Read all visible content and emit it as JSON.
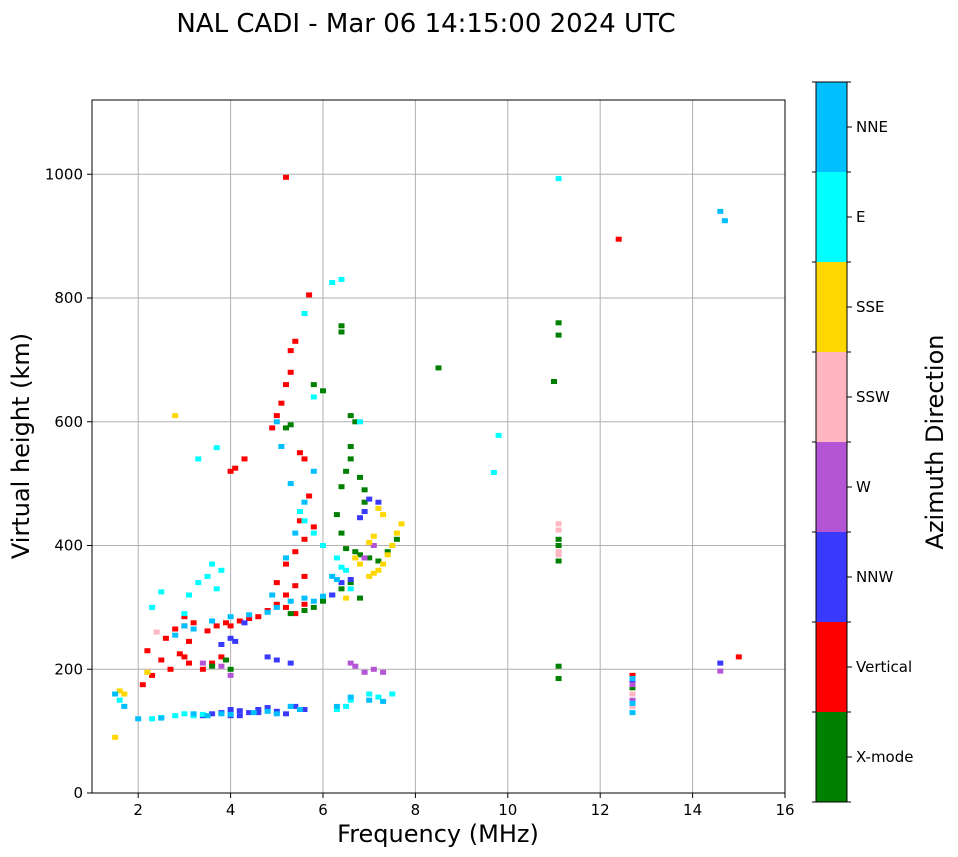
{
  "chart_data": {
    "type": "scatter",
    "title": "NAL CADI - Mar 06 14:15:00 2024 UTC",
    "xlabel": "Frequency (MHz)",
    "ylabel": "Virtual height (km)",
    "xlim": [
      1,
      16
    ],
    "ylim": [
      0,
      1120
    ],
    "xticks": [
      2,
      4,
      6,
      8,
      10,
      12,
      14,
      16
    ],
    "yticks": [
      0,
      200,
      400,
      600,
      800,
      1000
    ],
    "grid": true,
    "colorbar": {
      "label": "Azimuth Direction",
      "categories": [
        {
          "name": "X-mode",
          "color": "#008000"
        },
        {
          "name": "Vertical",
          "color": "#ff0000"
        },
        {
          "name": "NNW",
          "color": "#3a3aff"
        },
        {
          "name": "W",
          "color": "#b455d6"
        },
        {
          "name": "SSW",
          "color": "#ffb6c1"
        },
        {
          "name": "SSE",
          "color": "#ffd700"
        },
        {
          "name": "E",
          "color": "#00ffff"
        },
        {
          "name": "NNE",
          "color": "#00bfff"
        }
      ]
    },
    "series": [
      {
        "name": "Vertical",
        "points": [
          [
            2.1,
            175
          ],
          [
            2.3,
            190
          ],
          [
            2.5,
            215
          ],
          [
            2.6,
            250
          ],
          [
            2.8,
            265
          ],
          [
            3.0,
            270
          ],
          [
            3.0,
            285
          ],
          [
            3.2,
            275
          ],
          [
            3.5,
            262
          ],
          [
            3.7,
            270
          ],
          [
            3.9,
            275
          ],
          [
            4.0,
            270
          ],
          [
            4.2,
            278
          ],
          [
            4.4,
            282
          ],
          [
            4.6,
            285
          ],
          [
            4.8,
            295
          ],
          [
            5.0,
            305
          ],
          [
            5.2,
            320
          ],
          [
            5.4,
            335
          ],
          [
            5.6,
            350
          ],
          [
            3.1,
            210
          ],
          [
            3.4,
            200
          ],
          [
            3.6,
            210
          ],
          [
            2.9,
            225
          ],
          [
            3.1,
            245
          ],
          [
            3.0,
            220
          ],
          [
            3.8,
            220
          ],
          [
            5.0,
            340
          ],
          [
            5.2,
            370
          ],
          [
            5.4,
            390
          ],
          [
            5.6,
            410
          ],
          [
            5.8,
            430
          ],
          [
            5.2,
            300
          ],
          [
            5.4,
            290
          ],
          [
            5.6,
            305
          ],
          [
            4.9,
            590
          ],
          [
            5.0,
            610
          ],
          [
            5.1,
            630
          ],
          [
            5.2,
            660
          ],
          [
            5.3,
            680
          ],
          [
            4.3,
            540
          ],
          [
            4.1,
            525
          ],
          [
            4.0,
            520
          ],
          [
            5.3,
            715
          ],
          [
            5.4,
            730
          ],
          [
            5.7,
            805
          ],
          [
            5.2,
            995
          ],
          [
            12.4,
            895
          ],
          [
            12.7,
            190
          ],
          [
            15.0,
            220
          ],
          [
            5.6,
            540
          ],
          [
            5.5,
            550
          ],
          [
            5.7,
            480
          ],
          [
            5.5,
            440
          ],
          [
            2.7,
            200
          ],
          [
            2.2,
            230
          ]
        ]
      },
      {
        "name": "X-mode",
        "points": [
          [
            3.6,
            205
          ],
          [
            3.9,
            215
          ],
          [
            4.0,
            200
          ],
          [
            5.2,
            590
          ],
          [
            5.3,
            595
          ],
          [
            6.0,
            650
          ],
          [
            5.8,
            660
          ],
          [
            6.4,
            745
          ],
          [
            6.4,
            755
          ],
          [
            6.6,
            540
          ],
          [
            6.5,
            520
          ],
          [
            6.8,
            510
          ],
          [
            6.9,
            490
          ],
          [
            6.9,
            470
          ],
          [
            6.4,
            495
          ],
          [
            6.6,
            560
          ],
          [
            6.3,
            450
          ],
          [
            6.4,
            420
          ],
          [
            6.5,
            395
          ],
          [
            6.7,
            390
          ],
          [
            6.8,
            385
          ],
          [
            7.0,
            380
          ],
          [
            7.2,
            375
          ],
          [
            7.4,
            390
          ],
          [
            7.6,
            410
          ],
          [
            5.8,
            300
          ],
          [
            6.0,
            310
          ],
          [
            6.2,
            320
          ],
          [
            6.4,
            330
          ],
          [
            6.6,
            340
          ],
          [
            6.7,
            600
          ],
          [
            6.6,
            610
          ],
          [
            8.5,
            687
          ],
          [
            11.0,
            665
          ],
          [
            11.1,
            740
          ],
          [
            11.1,
            760
          ],
          [
            11.1,
            410
          ],
          [
            11.1,
            400
          ],
          [
            11.1,
            375
          ],
          [
            11.1,
            205
          ],
          [
            11.1,
            185
          ],
          [
            12.7,
            170
          ],
          [
            5.3,
            290
          ],
          [
            5.6,
            295
          ],
          [
            6.8,
            315
          ]
        ]
      },
      {
        "name": "NNW",
        "points": [
          [
            3.4,
            125
          ],
          [
            3.6,
            128
          ],
          [
            3.8,
            130
          ],
          [
            4.0,
            135
          ],
          [
            4.2,
            133
          ],
          [
            4.4,
            130
          ],
          [
            4.6,
            135
          ],
          [
            4.8,
            138
          ],
          [
            5.0,
            132
          ],
          [
            5.2,
            128
          ],
          [
            5.4,
            140
          ],
          [
            5.6,
            135
          ],
          [
            4.0,
            125
          ],
          [
            4.2,
            125
          ],
          [
            6.6,
            345
          ],
          [
            6.4,
            340
          ],
          [
            6.8,
            445
          ],
          [
            6.9,
            455
          ],
          [
            7.0,
            475
          ],
          [
            3.8,
            240
          ],
          [
            4.0,
            250
          ],
          [
            4.1,
            245
          ],
          [
            4.8,
            220
          ],
          [
            5.0,
            215
          ],
          [
            12.7,
            180
          ],
          [
            12.7,
            160
          ],
          [
            14.6,
            210
          ],
          [
            7.2,
            470
          ],
          [
            6.2,
            320
          ],
          [
            4.6,
            130
          ],
          [
            5.3,
            210
          ],
          [
            4.3,
            275
          ]
        ]
      },
      {
        "name": "W",
        "points": [
          [
            3.4,
            210
          ],
          [
            3.8,
            205
          ],
          [
            4.0,
            190
          ],
          [
            6.6,
            210
          ],
          [
            6.9,
            195
          ],
          [
            7.1,
            200
          ],
          [
            7.3,
            195
          ],
          [
            12.7,
            175
          ],
          [
            12.7,
            150
          ],
          [
            14.6,
            197
          ],
          [
            6.7,
            205
          ],
          [
            6.9,
            380
          ],
          [
            7.1,
            400
          ]
        ]
      },
      {
        "name": "SSW",
        "points": [
          [
            11.1,
            435
          ],
          [
            11.1,
            425
          ],
          [
            11.1,
            390
          ],
          [
            11.1,
            385
          ],
          [
            12.7,
            140
          ],
          [
            12.7,
            160
          ],
          [
            2.4,
            260
          ],
          [
            2.2,
            195
          ]
        ]
      },
      {
        "name": "SSE",
        "points": [
          [
            1.6,
            165
          ],
          [
            1.7,
            160
          ],
          [
            1.5,
            90
          ],
          [
            2.2,
            195
          ],
          [
            2.8,
            610
          ],
          [
            6.7,
            380
          ],
          [
            6.8,
            370
          ],
          [
            7.0,
            350
          ],
          [
            7.1,
            355
          ],
          [
            7.2,
            360
          ],
          [
            7.3,
            370
          ],
          [
            7.4,
            385
          ],
          [
            7.5,
            400
          ],
          [
            7.6,
            420
          ],
          [
            7.0,
            405
          ],
          [
            7.1,
            415
          ],
          [
            7.2,
            460
          ],
          [
            7.3,
            450
          ],
          [
            6.5,
            315
          ],
          [
            7.7,
            435
          ]
        ]
      },
      {
        "name": "E",
        "points": [
          [
            2.3,
            120
          ],
          [
            2.5,
            122
          ],
          [
            2.8,
            125
          ],
          [
            3.0,
            128
          ],
          [
            3.2,
            125
          ],
          [
            3.4,
            127
          ],
          [
            3.0,
            290
          ],
          [
            3.1,
            320
          ],
          [
            3.3,
            340
          ],
          [
            3.5,
            350
          ],
          [
            3.6,
            370
          ],
          [
            3.8,
            360
          ],
          [
            3.7,
            330
          ],
          [
            3.3,
            540
          ],
          [
            3.7,
            558
          ],
          [
            2.3,
            300
          ],
          [
            2.5,
            325
          ],
          [
            5.5,
            455
          ],
          [
            5.6,
            440
          ],
          [
            5.8,
            420
          ],
          [
            6.0,
            400
          ],
          [
            6.3,
            380
          ],
          [
            6.4,
            365
          ],
          [
            6.5,
            360
          ],
          [
            6.6,
            330
          ],
          [
            5.8,
            640
          ],
          [
            6.2,
            825
          ],
          [
            6.4,
            830
          ],
          [
            9.7,
            518
          ],
          [
            9.8,
            578
          ],
          [
            11.1,
            993
          ],
          [
            7.0,
            160
          ],
          [
            7.2,
            155
          ],
          [
            7.5,
            160
          ],
          [
            1.6,
            150
          ],
          [
            5.6,
            775
          ],
          [
            6.8,
            600
          ],
          [
            6.5,
            140
          ],
          [
            6.3,
            135
          ],
          [
            6.6,
            150
          ]
        ]
      },
      {
        "name": "NNE",
        "points": [
          [
            1.5,
            160
          ],
          [
            1.7,
            140
          ],
          [
            2.0,
            120
          ],
          [
            2.5,
            121
          ],
          [
            3.2,
            128
          ],
          [
            3.5,
            125
          ],
          [
            3.8,
            128
          ],
          [
            4.0,
            127
          ],
          [
            4.5,
            130
          ],
          [
            4.8,
            132
          ],
          [
            5.0,
            128
          ],
          [
            5.3,
            140
          ],
          [
            5.5,
            135
          ],
          [
            6.3,
            140
          ],
          [
            6.6,
            155
          ],
          [
            7.0,
            150
          ],
          [
            7.3,
            148
          ],
          [
            3.0,
            270
          ],
          [
            3.2,
            265
          ],
          [
            3.6,
            278
          ],
          [
            4.0,
            285
          ],
          [
            4.4,
            288
          ],
          [
            4.8,
            292
          ],
          [
            5.0,
            300
          ],
          [
            5.3,
            310
          ],
          [
            5.6,
            315
          ],
          [
            5.8,
            310
          ],
          [
            6.0,
            318
          ],
          [
            5.2,
            380
          ],
          [
            5.4,
            420
          ],
          [
            5.6,
            470
          ],
          [
            5.8,
            520
          ],
          [
            6.2,
            350
          ],
          [
            6.3,
            345
          ],
          [
            12.7,
            130
          ],
          [
            12.7,
            145
          ],
          [
            12.7,
            185
          ],
          [
            14.6,
            940
          ],
          [
            14.7,
            925
          ],
          [
            5.0,
            600
          ],
          [
            5.1,
            560
          ],
          [
            5.3,
            500
          ],
          [
            4.9,
            320
          ],
          [
            2.8,
            255
          ]
        ]
      }
    ]
  }
}
